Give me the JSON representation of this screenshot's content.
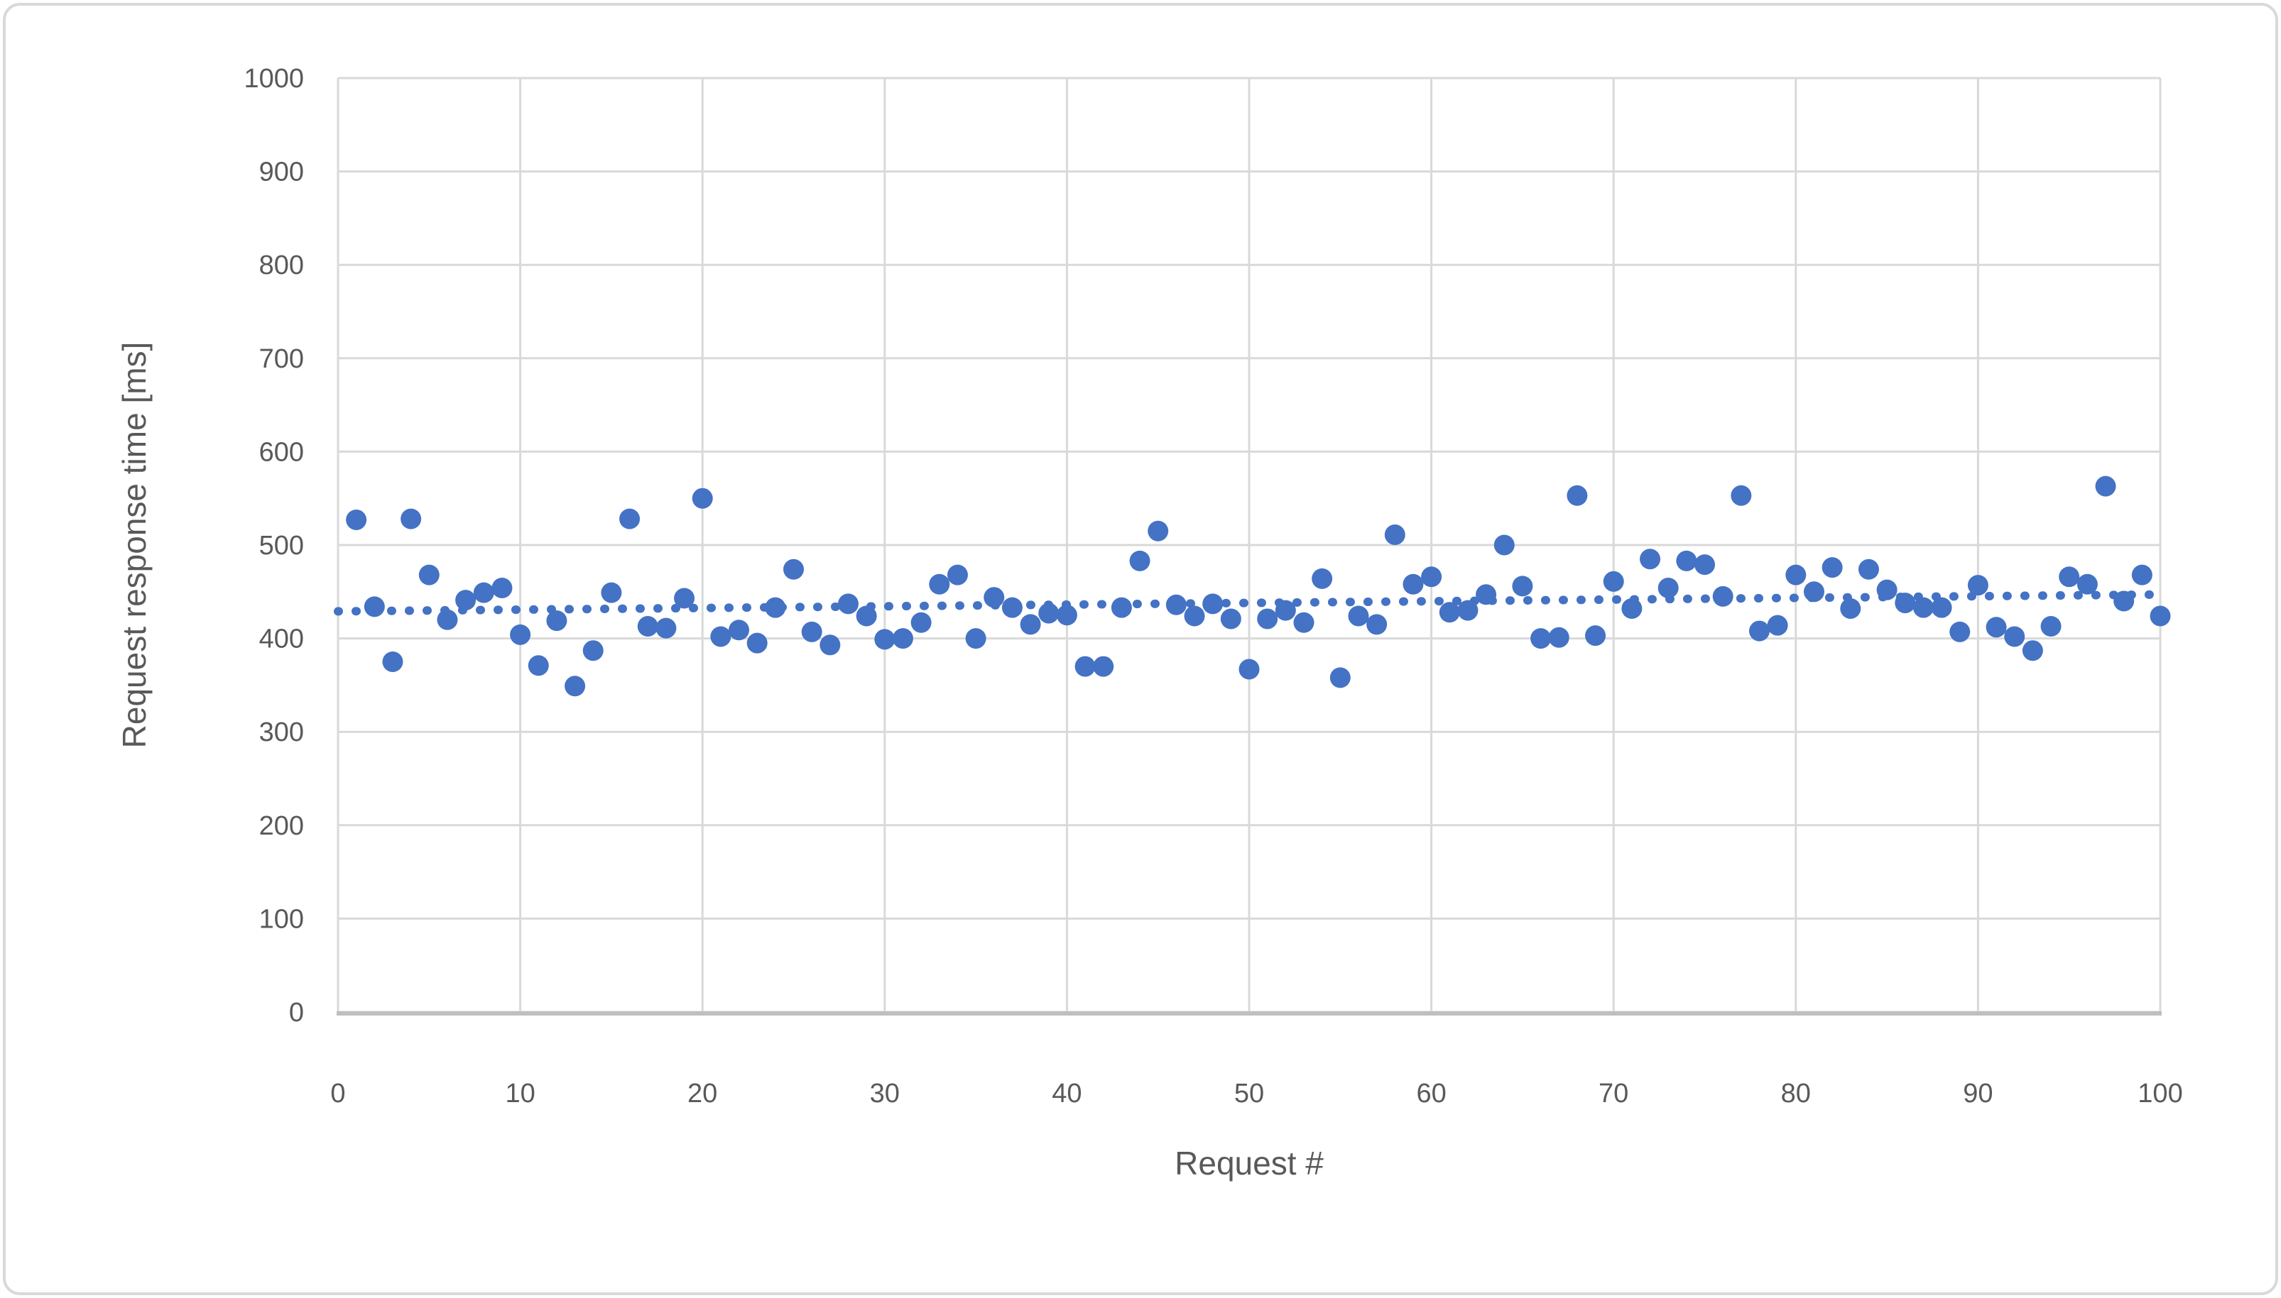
{
  "chart_data": {
    "type": "scatter",
    "title": "",
    "xlabel": "Request #",
    "ylabel": "Request response time [ms]",
    "xlim": [
      0,
      100
    ],
    "ylim": [
      0,
      1000
    ],
    "x_ticks": [
      0,
      10,
      20,
      30,
      40,
      50,
      60,
      70,
      80,
      90,
      100
    ],
    "y_ticks": [
      0,
      100,
      200,
      300,
      400,
      500,
      600,
      700,
      800,
      900,
      1000
    ],
    "grid": true,
    "legend": "none",
    "marker_color": "#4472C4",
    "gridline_color": "#D9D9D9",
    "axis_line_color": "#BFBFBF",
    "tick_label_color": "#595959",
    "axis_title_color": "#595959",
    "series": [
      {
        "name": "Request response time",
        "x": [
          1,
          2,
          3,
          4,
          5,
          6,
          7,
          8,
          9,
          10,
          11,
          12,
          13,
          14,
          15,
          16,
          17,
          18,
          19,
          20,
          21,
          22,
          23,
          24,
          25,
          26,
          27,
          28,
          29,
          30,
          31,
          32,
          33,
          34,
          35,
          36,
          37,
          38,
          39,
          40,
          41,
          42,
          43,
          44,
          45,
          46,
          47,
          48,
          49,
          50,
          51,
          52,
          53,
          54,
          55,
          56,
          57,
          58,
          59,
          60,
          61,
          62,
          63,
          64,
          65,
          66,
          67,
          68,
          69,
          70,
          71,
          72,
          73,
          74,
          75,
          76,
          77,
          78,
          79,
          80,
          81,
          82,
          83,
          84,
          85,
          86,
          87,
          88,
          89,
          90,
          91,
          92,
          93,
          94,
          95,
          96,
          97,
          98,
          99,
          100
        ],
        "y": [
          527,
          434,
          375,
          528,
          468,
          420,
          441,
          449,
          454,
          404,
          371,
          419,
          349,
          387,
          449,
          528,
          413,
          411,
          443,
          550,
          402,
          409,
          395,
          433,
          474,
          407,
          393,
          437,
          424,
          399,
          400,
          417,
          458,
          468,
          400,
          444,
          433,
          415,
          427,
          425,
          370,
          370,
          433,
          483,
          515,
          436,
          424,
          437,
          421,
          367,
          421,
          430,
          417,
          464,
          358,
          424,
          415,
          511,
          458,
          466,
          428,
          430,
          447,
          500,
          456,
          400,
          401,
          553,
          403,
          461,
          432,
          485,
          454,
          483,
          479,
          445,
          553,
          408,
          414,
          468,
          450,
          476,
          432,
          474,
          452,
          438,
          433,
          433,
          407,
          457,
          412,
          402,
          387,
          413,
          466,
          458,
          563,
          440,
          468,
          424
        ]
      }
    ],
    "trendline": {
      "style": "dotted",
      "color": "#4472C4",
      "start_value": 429,
      "end_value": 447
    }
  },
  "figure": {
    "border_color": "#D9D9D9",
    "background": "#ffffff"
  }
}
